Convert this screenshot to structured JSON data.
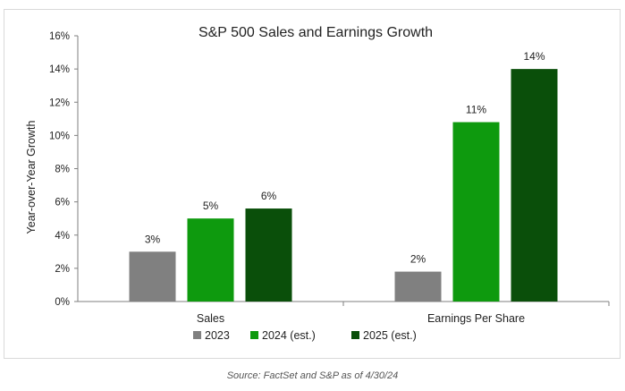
{
  "chart_data": {
    "type": "bar",
    "title": "S&P 500 Sales and Earnings Growth",
    "ylabel": "Year-over-Year Growth",
    "xlabel": "",
    "ylim": [
      0,
      16
    ],
    "yticks": [
      0,
      2,
      4,
      6,
      8,
      10,
      12,
      14,
      16
    ],
    "ytick_format": "%",
    "categories": [
      "Sales",
      "Earnings Per Share"
    ],
    "series": [
      {
        "name": "2023",
        "color": "#808080",
        "values": [
          3.0,
          1.8
        ],
        "labels": [
          "3%",
          "2%"
        ]
      },
      {
        "name": "2024 (est.)",
        "color": "#0e9a0e",
        "values": [
          5.0,
          10.8
        ],
        "labels": [
          "5%",
          "11%"
        ]
      },
      {
        "name": "2025 (est.)",
        "color": "#0a4f0a",
        "values": [
          5.6,
          14.0
        ],
        "labels": [
          "6%",
          "14%"
        ]
      }
    ],
    "legend": "bottom",
    "grid": false
  },
  "source": "Source: FactSet and S&P as of 4/30/24"
}
